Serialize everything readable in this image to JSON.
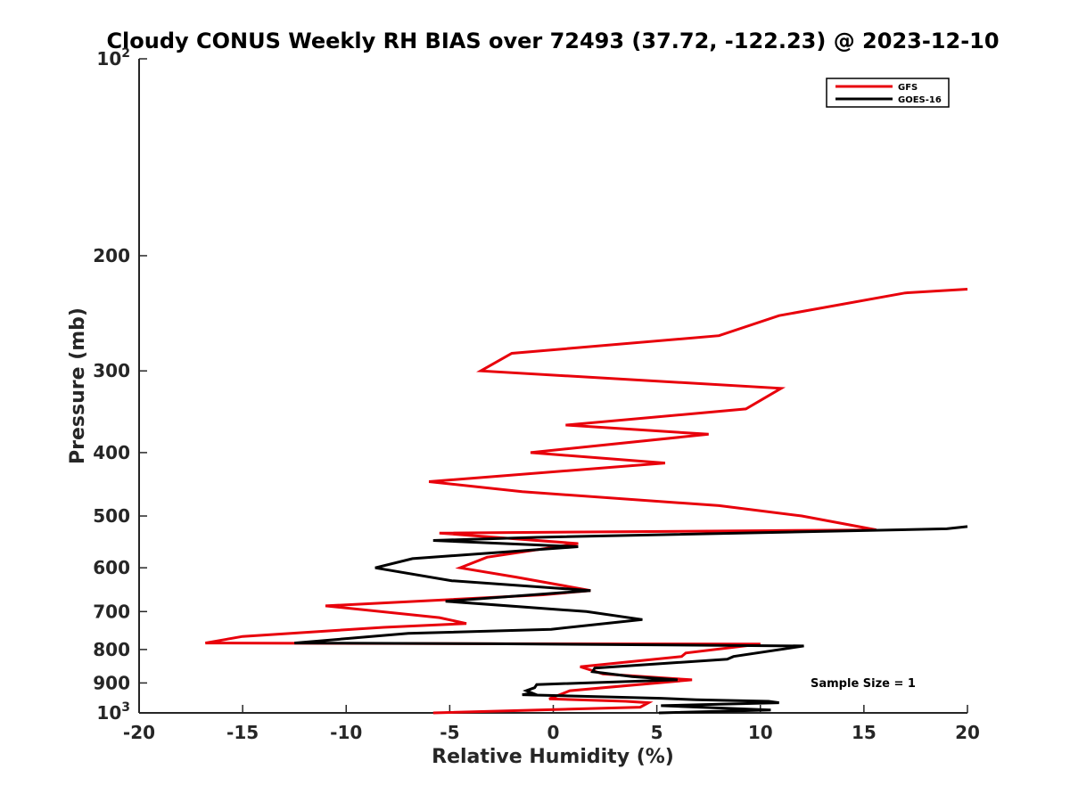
{
  "chart_data": {
    "type": "line",
    "title": "Cloudy CONUS Weekly RH BIAS over 72493 (37.72, -122.23) @ 2023-12-10",
    "xlabel": "Relative Humidity (%)",
    "ylabel": "Pressure (mb)",
    "xlim": [
      -20,
      20
    ],
    "ylim": [
      100,
      1000
    ],
    "y_scale": "log",
    "y_reversed": true,
    "x_ticks": [
      "-20",
      "-15",
      "-10",
      "-5",
      "0",
      "5",
      "10",
      "15",
      "20"
    ],
    "y_ticks": [
      {
        "value": 100,
        "base": "10",
        "exp": "2"
      },
      {
        "value": 200,
        "base": "200",
        "exp": ""
      },
      {
        "value": 300,
        "base": "300",
        "exp": ""
      },
      {
        "value": 400,
        "base": "400",
        "exp": ""
      },
      {
        "value": 500,
        "base": "500",
        "exp": ""
      },
      {
        "value": 600,
        "base": "600",
        "exp": ""
      },
      {
        "value": 700,
        "base": "700",
        "exp": ""
      },
      {
        "value": 800,
        "base": "800",
        "exp": ""
      },
      {
        "value": 900,
        "base": "900",
        "exp": ""
      },
      {
        "value": 1000,
        "base": "10",
        "exp": "3"
      }
    ],
    "grid": false,
    "legend_position": "top-right",
    "series": [
      {
        "name": "GFS",
        "color": "#e8000b",
        "points": [
          [
            20,
            225
          ],
          [
            17,
            228
          ],
          [
            10.9,
            247
          ],
          [
            8,
            265
          ],
          [
            -2,
            282
          ],
          [
            -3.5,
            300
          ],
          [
            11,
            319
          ],
          [
            9.3,
            343
          ],
          [
            0.6,
            363
          ],
          [
            7.5,
            375
          ],
          [
            -1.1,
            400
          ],
          [
            5.4,
            415
          ],
          [
            -6,
            443
          ],
          [
            -1.5,
            459
          ],
          [
            8,
            482
          ],
          [
            12,
            500
          ],
          [
            15.6,
            525
          ],
          [
            -5.5,
            531
          ],
          [
            1.2,
            551
          ],
          [
            -3.2,
            578
          ],
          [
            -4.5,
            600
          ],
          [
            -1.8,
            620
          ],
          [
            1.8,
            650
          ],
          [
            -0.5,
            660
          ],
          [
            -11,
            686
          ],
          [
            -5.5,
            715
          ],
          [
            -4.2,
            730
          ],
          [
            -8.2,
            740
          ],
          [
            -15,
            764
          ],
          [
            -16.8,
            782
          ],
          [
            -3,
            784
          ],
          [
            10,
            785
          ],
          [
            6.4,
            810
          ],
          [
            6.2,
            820
          ],
          [
            1.3,
            850
          ],
          [
            2.4,
            872
          ],
          [
            6.7,
            890
          ],
          [
            0.8,
            925
          ],
          [
            -0.2,
            952
          ],
          [
            3.5,
            960
          ],
          [
            4.6,
            965
          ],
          [
            4.2,
            980
          ],
          [
            -5.8,
            1000
          ]
        ]
      },
      {
        "name": "GOES-16",
        "color": "#000000",
        "points": [
          [
            20,
            519
          ],
          [
            19,
            523
          ],
          [
            -0.8,
            539
          ],
          [
            -5.8,
            545
          ],
          [
            1.2,
            557
          ],
          [
            -6.8,
            581
          ],
          [
            -8.6,
            600
          ],
          [
            -4.9,
            628
          ],
          [
            1.8,
            650
          ],
          [
            -5.2,
            675
          ],
          [
            1.6,
            700
          ],
          [
            4.3,
            720
          ],
          [
            -0.1,
            745
          ],
          [
            -7,
            756
          ],
          [
            -12.5,
            782
          ],
          [
            -3,
            784
          ],
          [
            12.1,
            790
          ],
          [
            8.7,
            820
          ],
          [
            8.4,
            828
          ],
          [
            2,
            854
          ],
          [
            1.9,
            865
          ],
          [
            3.8,
            880
          ],
          [
            6,
            890
          ],
          [
            -0.8,
            905
          ],
          [
            -0.9,
            915
          ],
          [
            -1.3,
            925
          ],
          [
            -1,
            933
          ],
          [
            -1.5,
            938
          ],
          [
            5.2,
            950
          ],
          [
            6.9,
            955
          ],
          [
            10.4,
            960
          ],
          [
            10.9,
            965
          ],
          [
            5.2,
            975
          ],
          [
            10.5,
            990
          ],
          [
            5.1,
            1000
          ]
        ]
      }
    ],
    "annotations": [
      "Sample Size = 1"
    ]
  }
}
